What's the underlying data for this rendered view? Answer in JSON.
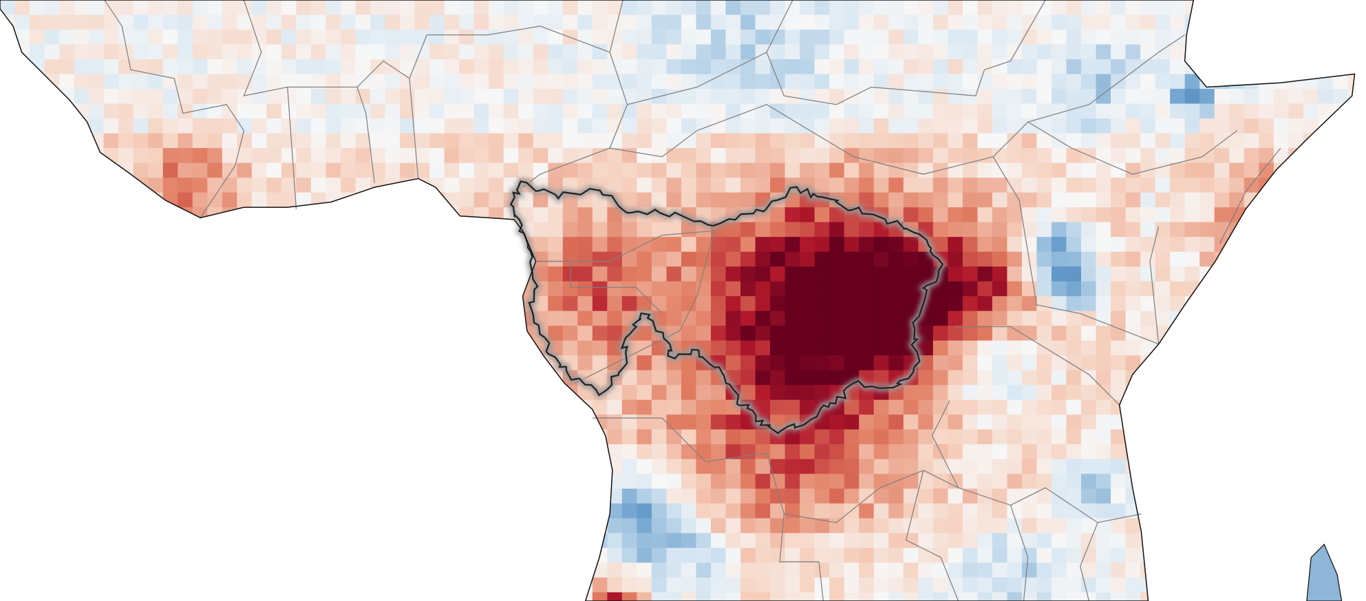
{
  "map": {
    "type": "gridded anomaly heatmap",
    "color_scale": {
      "strong_negative": "#2c6aa6",
      "negative": "#6fa3cf",
      "weak_negative": "#d6e6f2",
      "neutral": "#f7f7f7",
      "weak_positive": "#f6d1bf",
      "positive": "#e07a5f",
      "strong_positive": "#b2182b",
      "extreme_positive": "#67001f"
    },
    "ocean_color": "#ffffff",
    "coastline_color": "#111111",
    "border_color": "#808080",
    "highlight_outline_color": "#222222"
  }
}
